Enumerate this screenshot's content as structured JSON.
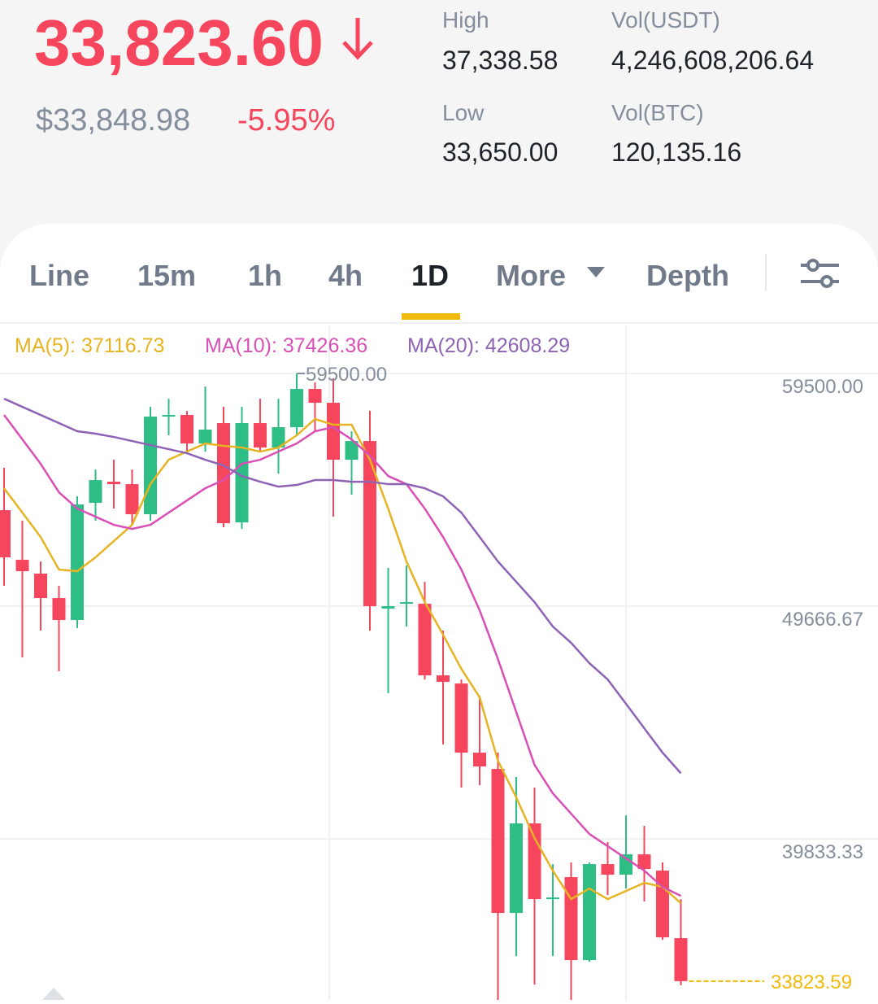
{
  "header": {
    "price": "33,823.60",
    "price_usd": "$33,848.98",
    "change": "-5.95%",
    "stats": [
      {
        "label": "High",
        "value": "37,338.58"
      },
      {
        "label": "Vol(USDT)",
        "value": "4,246,608,206.64"
      },
      {
        "label": "Low",
        "value": "33,650.00"
      },
      {
        "label": "Vol(BTC)",
        "value": "120,135.16"
      }
    ]
  },
  "tabs": {
    "items": [
      "Line",
      "15m",
      "1h",
      "4h",
      "1D",
      "More",
      "Depth"
    ],
    "active_index": 4
  },
  "chart_data": {
    "type": "candlestick",
    "open": [
      53724,
      51627,
      51043,
      50011,
      49083,
      54034,
      54927,
      54824,
      53552,
      57678,
      57747,
      56543,
      57403,
      53208,
      57403,
      56371,
      57231,
      58847,
      58262,
      55856,
      56646,
      49564,
      49770,
      49770,
      46745,
      46401,
      43479,
      42791,
      36706,
      40488,
      37291,
      38219,
      34712,
      38769,
      38322,
      39181,
      38494,
      35640
    ],
    "high": [
      55512,
      53277,
      51558,
      50527,
      54309,
      55443,
      55856,
      55443,
      58090,
      58434,
      57919,
      58950,
      58090,
      58090,
      58434,
      58434,
      59500,
      59122,
      59300,
      57059,
      57919,
      51283,
      51386,
      50699,
      48636,
      46573,
      45886,
      43479,
      42448,
      42001,
      38769,
      38838,
      38838,
      39697,
      40832,
      40385,
      38838,
      37291
    ],
    "low": [
      50527,
      47501,
      48636,
      46917,
      48739,
      53277,
      53793,
      53105,
      53277,
      56887,
      56200,
      56200,
      53002,
      52933,
      56200,
      55271,
      56887,
      57059,
      53449,
      54377,
      48636,
      45989,
      48808,
      46573,
      43823,
      42001,
      42104,
      32900,
      34884,
      33681,
      34884,
      32900,
      34643,
      37462,
      37737,
      37187,
      35572,
      33650
    ],
    "close": [
      51730,
      51146,
      50011,
      49083,
      53965,
      54996,
      54824,
      53552,
      57678,
      57747,
      56543,
      57128,
      53174,
      57403,
      56371,
      57231,
      58847,
      58262,
      55856,
      56646,
      49667,
      49667,
      49839,
      46745,
      46470,
      43479,
      42894,
      36706,
      40488,
      37291,
      37359,
      34712,
      38769,
      38322,
      39181,
      38563,
      35675,
      33823.59
    ],
    "up_color": "#2ebd85",
    "down_color": "#f6465d",
    "series": [
      {
        "name": "MA(5): 37116.73",
        "color": "#e6b422",
        "values": [
          54652,
          53621,
          52590,
          51214,
          51146,
          51730,
          52418,
          53105,
          54824,
          55856,
          56200,
          56543,
          56440,
          56371,
          56200,
          56371,
          56887,
          57575,
          57334,
          57334,
          55856,
          53793,
          51558,
          49839,
          48464,
          47020,
          45817,
          43135,
          41588,
          39869,
          38494,
          37291,
          37737,
          37291,
          37634,
          37978,
          37806,
          37116.73
        ]
      },
      {
        "name": "MA(10): 37426.36",
        "color": "#d94fb5",
        "values": [
          57747,
          56715,
          55684,
          54481,
          53793,
          53449,
          53105,
          52933,
          53105,
          53621,
          54137,
          54652,
          54996,
          55684,
          55856,
          56200,
          56543,
          57059,
          57231,
          56715,
          56028,
          55168,
          54824,
          53793,
          52590,
          51214,
          49495,
          47433,
          45198,
          42963,
          41760,
          40900,
          40041,
          39525,
          39010,
          38494,
          37806,
          37426.36
        ]
      },
      {
        "name": "MA(20): 42608.29",
        "color": "#8e63b5",
        "values": [
          58434,
          58090,
          57747,
          57403,
          57059,
          56956,
          56818,
          56646,
          56475,
          56303,
          56131,
          55856,
          55615,
          55168,
          54927,
          54721,
          54790,
          54996,
          54996,
          54927,
          54927,
          54824,
          54824,
          54652,
          54309,
          53621,
          52590,
          51558,
          50699,
          49839,
          48808,
          48120,
          47261,
          46573,
          45542,
          44510,
          43479,
          42608.29
        ]
      }
    ],
    "ylim": [
      33030,
      61530
    ],
    "yticks": [
      {
        "value": 59500,
        "label": "59500.00"
      },
      49666.67,
      39833.33
    ],
    "grid": true,
    "max_label": {
      "value": 59500,
      "label": "59500.00"
    },
    "last_label": {
      "value": 33823.59,
      "label": "33823.59"
    }
  }
}
